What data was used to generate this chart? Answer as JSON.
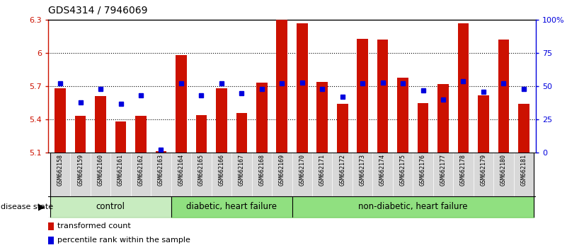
{
  "title": "GDS4314 / 7946069",
  "samples": [
    "GSM662158",
    "GSM662159",
    "GSM662160",
    "GSM662161",
    "GSM662162",
    "GSM662163",
    "GSM662164",
    "GSM662165",
    "GSM662166",
    "GSM662167",
    "GSM662168",
    "GSM662169",
    "GSM662170",
    "GSM662171",
    "GSM662172",
    "GSM662173",
    "GSM662174",
    "GSM662175",
    "GSM662176",
    "GSM662177",
    "GSM662178",
    "GSM662179",
    "GSM662180",
    "GSM662181"
  ],
  "transformed_count": [
    5.68,
    5.43,
    5.61,
    5.38,
    5.43,
    5.115,
    5.98,
    5.44,
    5.68,
    5.46,
    5.73,
    6.3,
    6.27,
    5.74,
    5.54,
    6.13,
    6.12,
    5.78,
    5.55,
    5.72,
    6.27,
    5.62,
    6.12,
    5.54
  ],
  "percentile_rank": [
    52,
    38,
    48,
    37,
    43,
    2,
    52,
    43,
    52,
    45,
    48,
    52,
    53,
    48,
    42,
    52,
    53,
    52,
    47,
    40,
    54,
    46,
    52,
    48
  ],
  "ylim_left": [
    5.1,
    6.3
  ],
  "yticks_left": [
    5.1,
    5.4,
    5.7,
    6.0,
    6.3
  ],
  "ytick_labels_left": [
    "5.1",
    "5.4",
    "5.7",
    "6",
    "6.3"
  ],
  "ylim_right": [
    0,
    100
  ],
  "yticks_right": [
    0,
    25,
    50,
    75,
    100
  ],
  "ytick_labels_right": [
    "0",
    "25",
    "50",
    "75",
    "100%"
  ],
  "hgrid_lines": [
    5.4,
    5.7,
    6.0
  ],
  "bar_color": "#CC1100",
  "dot_color": "#0000DD",
  "group_ranges": [
    [
      0,
      6,
      "control"
    ],
    [
      6,
      12,
      "diabetic, heart failure"
    ],
    [
      12,
      24,
      "non-diabetic, heart failure"
    ]
  ],
  "group_colors": [
    "#c8ecc0",
    "#90e080",
    "#90e080"
  ],
  "disease_state_label": "disease state",
  "legend_items": [
    {
      "color": "#CC1100",
      "label": "transformed count"
    },
    {
      "color": "#0000DD",
      "label": "percentile rank within the sample"
    }
  ]
}
